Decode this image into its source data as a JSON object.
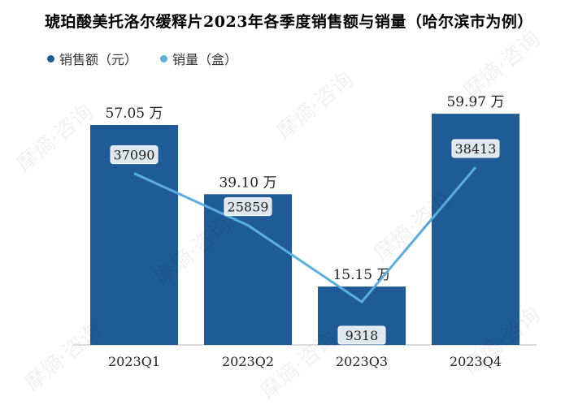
{
  "title": "琥珀酸美托洛尔缓释片2023年各季度销售额与销量（哈尔滨市为例）",
  "legend": [
    {
      "label": "销售额（元）",
      "color": "#1f5b96"
    },
    {
      "label": "销量（盒）",
      "color": "#5aaee0"
    }
  ],
  "watermark": "摩熵·咨询",
  "chart_data": {
    "type": "bar",
    "categories": [
      "2023Q1",
      "2023Q2",
      "2023Q3",
      "2023Q4"
    ],
    "series": [
      {
        "name": "销售额（元）",
        "kind": "bar",
        "values": [
          57.05,
          39.1,
          15.15,
          59.97
        ],
        "labels": [
          "57.05 万",
          "39.10 万",
          "15.15 万",
          "59.97 万"
        ],
        "color": "#1f5b96"
      },
      {
        "name": "销量（盒）",
        "kind": "line",
        "values": [
          37090,
          25859,
          9318,
          38413
        ],
        "labels": [
          "37090",
          "25859",
          "9318",
          "38413"
        ],
        "color": "#5aaee0"
      }
    ],
    "xlabel": "",
    "ylabel": ""
  }
}
